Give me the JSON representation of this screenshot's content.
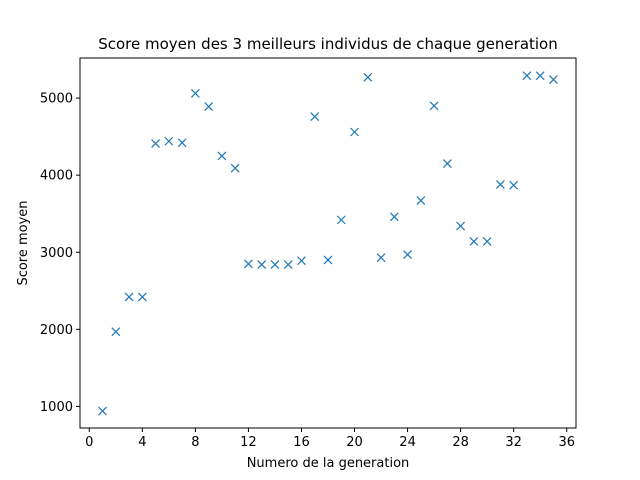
{
  "chart_data": {
    "type": "scatter",
    "title": "Score moyen des 3 meilleurs individus de chaque generation",
    "xlabel": "Numero de la generation",
    "ylabel": "Score moyen",
    "xlim": [
      -0.7,
      36.7
    ],
    "ylim": [
      720,
      5520
    ],
    "xticks": [
      0,
      4,
      8,
      12,
      16,
      20,
      24,
      28,
      32,
      36
    ],
    "yticks": [
      1000,
      2000,
      3000,
      4000,
      5000
    ],
    "grid": false,
    "marker": "x",
    "color": "#1f77b4",
    "series": [
      {
        "x": [
          1,
          2,
          3,
          4,
          5,
          6,
          7,
          8,
          9,
          10,
          11,
          12,
          13,
          14,
          15,
          16,
          17,
          18,
          19,
          20,
          21,
          22,
          23,
          24,
          25,
          26,
          27,
          28,
          29,
          30,
          31,
          32,
          33,
          34,
          35
        ],
        "y": [
          940,
          1970,
          2420,
          2420,
          4410,
          4440,
          4420,
          5060,
          4890,
          4250,
          4090,
          2850,
          2840,
          2840,
          2840,
          2890,
          4760,
          2900,
          3420,
          4560,
          5270,
          2930,
          3460,
          2970,
          3670,
          4900,
          4150,
          3340,
          3140,
          3140,
          3880,
          3870,
          5290,
          5290,
          5240
        ]
      }
    ]
  }
}
